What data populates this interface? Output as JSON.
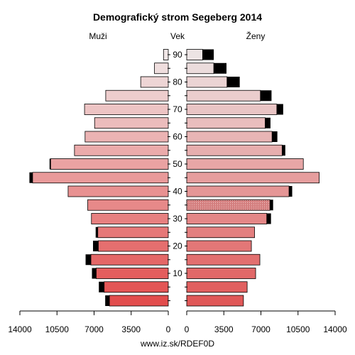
{
  "chart_data": {
    "type": "bar",
    "title": "Demografický strom Segeberg 2014",
    "left_label": "Muži",
    "middle_label": "Vek",
    "right_label": "Ženy",
    "age_ticks": [
      "90",
      "80",
      "70",
      "60",
      "50",
      "40",
      "30",
      "20",
      "10"
    ],
    "x_ticks_left": [
      "14000",
      "10500",
      "7000",
      "3500",
      "0"
    ],
    "x_ticks_right": [
      "0",
      "3500",
      "7000",
      "10500",
      "14000"
    ],
    "xlim": [
      0,
      14000
    ],
    "footer": "www.iz.sk/RDEF0D",
    "age_groups": [
      "0-4",
      "5-9",
      "10-14",
      "15-19",
      "20-24",
      "25-29",
      "30-34",
      "35-39",
      "40-44",
      "45-49",
      "50-54",
      "55-59",
      "60-64",
      "65-69",
      "70-74",
      "75-79",
      "80-84",
      "85-89",
      "90+"
    ],
    "series": [
      {
        "name": "Muži",
        "values": [
          5550,
          6050,
          6800,
          7300,
          6600,
          6650,
          7250,
          7600,
          9450,
          12800,
          11100,
          8850,
          7850,
          6950,
          7900,
          5900,
          2600,
          1300,
          450
        ],
        "excess": [
          400,
          500,
          400,
          500,
          500,
          200,
          0,
          0,
          0,
          300,
          100,
          0,
          0,
          0,
          0,
          0,
          0,
          0,
          0
        ]
      },
      {
        "name": "Ženy",
        "values": [
          5350,
          5700,
          6500,
          6900,
          6100,
          6400,
          7550,
          7850,
          9650,
          12500,
          11000,
          9000,
          8050,
          7400,
          8500,
          6950,
          3800,
          2550,
          1500
        ],
        "excess": [
          0,
          0,
          0,
          0,
          0,
          0,
          400,
          300,
          300,
          0,
          0,
          300,
          500,
          500,
          600,
          1050,
          1200,
          1200,
          1050
        ]
      }
    ]
  }
}
